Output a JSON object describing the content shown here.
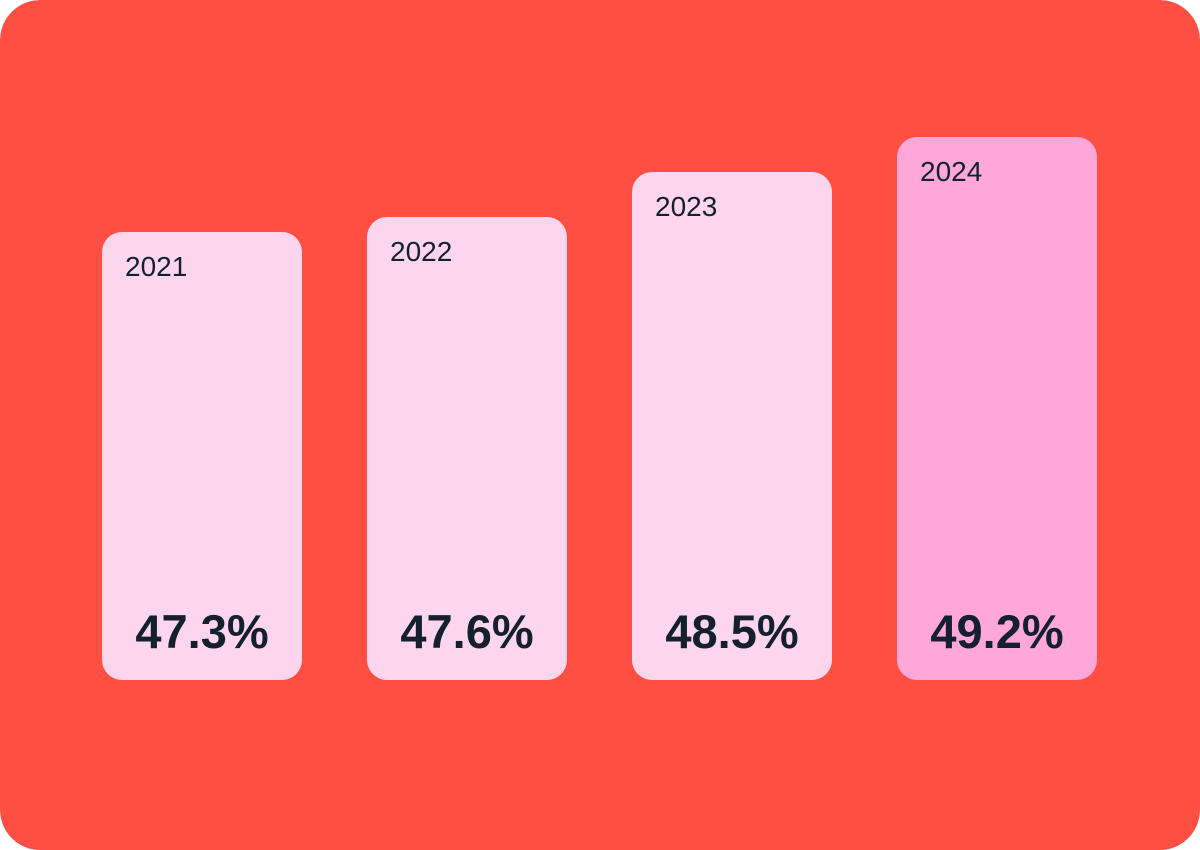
{
  "colors": {
    "background": "#ff4f42",
    "bar": "#fdd5ec",
    "bar_highlight": "#fea7d8",
    "text": "#14202e"
  },
  "chart_data": {
    "type": "bar",
    "categories": [
      "2021",
      "2022",
      "2023",
      "2024"
    ],
    "values": [
      47.3,
      47.6,
      48.5,
      49.2
    ],
    "value_labels": [
      "47.3%",
      "47.6%",
      "48.5%",
      "49.2%"
    ],
    "unit": "%",
    "highlighted_category": "2024",
    "title": "",
    "xlabel": "",
    "ylabel": "",
    "grid": false,
    "legend": "none"
  }
}
